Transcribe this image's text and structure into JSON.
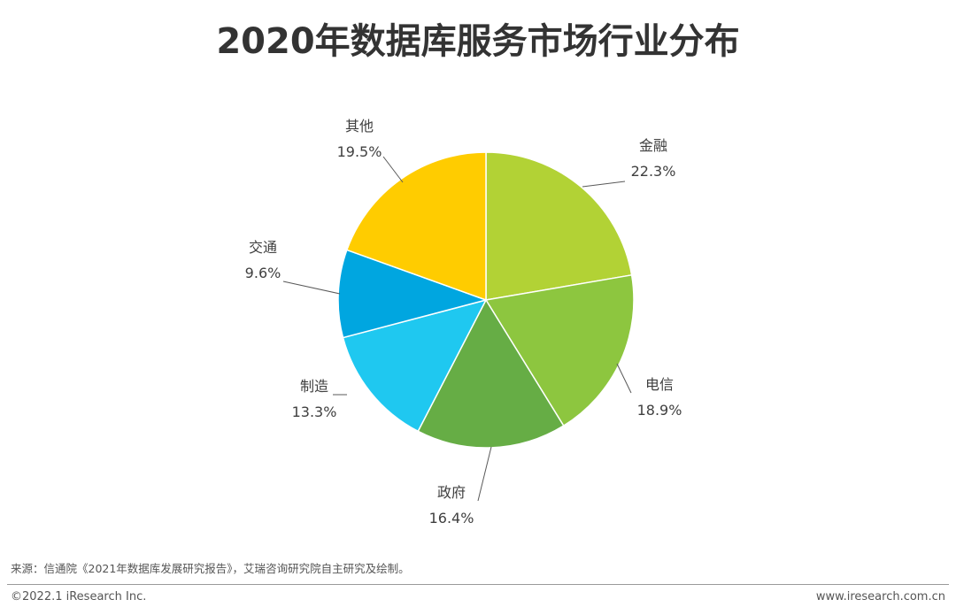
{
  "title": "2020年数据库服务市场行业分布",
  "chart_data": {
    "type": "pie",
    "title": "2020年数据库服务市场行业分布",
    "start_angle_deg": 0,
    "direction": "clockwise",
    "slices": [
      {
        "label": "金融",
        "value": 22.3,
        "value_text": "22.3%",
        "color": "#B2D235"
      },
      {
        "label": "电信",
        "value": 18.9,
        "value_text": "18.9%",
        "color": "#8DC63F"
      },
      {
        "label": "政府",
        "value": 16.4,
        "value_text": "16.4%",
        "color": "#66AD45"
      },
      {
        "label": "制造",
        "value": 13.3,
        "value_text": "13.3%",
        "color": "#1FC8F0"
      },
      {
        "label": "交通",
        "value": 9.6,
        "value_text": "9.6%",
        "color": "#00A6E0"
      },
      {
        "label": "其他",
        "value": 19.5,
        "value_text": "19.5%",
        "color": "#FFCC00"
      }
    ]
  },
  "source": "来源：信通院《2021年数据库发展研究报告》，艾瑞咨询研究院自主研究及绘制。",
  "footer": {
    "copyright": "©2022.1 iResearch Inc.",
    "website": "www.iresearch.com.cn"
  }
}
